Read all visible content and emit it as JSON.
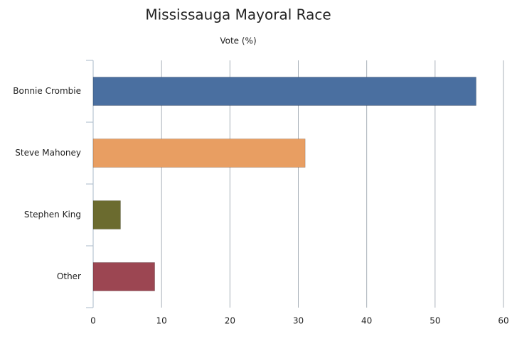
{
  "chart_data": {
    "type": "hbar",
    "title": "Mississauga Mayoral Race",
    "subtitle": "Vote (%)",
    "categories": [
      "Bonnie Crombie",
      "Steve Mahoney",
      "Stephen King",
      "Other"
    ],
    "values": [
      56,
      31,
      4,
      9
    ],
    "colors": [
      "#4a6fa0",
      "#e89e62",
      "#6b6b2f",
      "#9c4652"
    ],
    "xlim": [
      0,
      60
    ],
    "xticks": [
      0,
      10,
      20,
      30,
      40,
      50,
      60
    ],
    "grid": true
  }
}
